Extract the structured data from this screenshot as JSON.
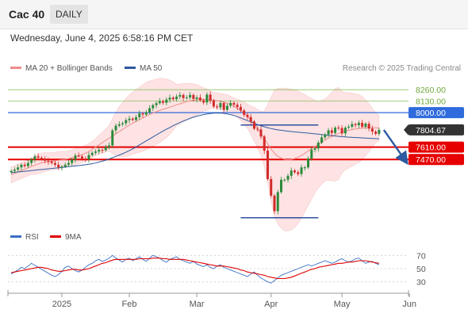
{
  "header": {
    "title": "Cac 40",
    "period": "DAILY"
  },
  "timestamp": "Wednesday, June 4, 2025 6:58:16 PM CET",
  "legend": {
    "ma20": {
      "label": "MA 20 + Bollinger Bands",
      "color": "#f08c8c"
    },
    "ma50": {
      "label": "MA 50",
      "color": "#2d5aa0"
    },
    "rsi": {
      "label": "RSI",
      "color": "#3a6fc4"
    },
    "rsi_ma": {
      "label": "9MA",
      "color": "#e00000"
    }
  },
  "credit": "Research © 2025 Trading Central",
  "chart_data": [
    {
      "type": "candlestick",
      "ylim": [
        6700,
        8450
      ],
      "x_tick_labels": [
        "2025",
        "Feb",
        "Mar",
        "Apr",
        "May",
        "Jun"
      ],
      "levels": [
        {
          "label": "8260.00",
          "value": 8260,
          "kind": "resistance",
          "color": "#8cc060"
        },
        {
          "label": "8130.00",
          "value": 8130,
          "kind": "resistance",
          "color": "#8cc060"
        },
        {
          "label": "8000.00",
          "value": 8000,
          "kind": "resistance",
          "color": "#2f6bdc"
        },
        {
          "label": "7804.67",
          "value": 7804.67,
          "kind": "last",
          "color": "#333333"
        },
        {
          "label": "7610.00",
          "value": 7610,
          "kind": "support",
          "color": "#e60000"
        },
        {
          "label": "7470.00",
          "value": 7470,
          "kind": "support",
          "color": "#e60000"
        }
      ],
      "closes": [
        7340,
        7355,
        7380,
        7410,
        7395,
        7430,
        7470,
        7505,
        7490,
        7480,
        7455,
        7445,
        7430,
        7410,
        7380,
        7390,
        7410,
        7430,
        7470,
        7515,
        7505,
        7480,
        7470,
        7520,
        7545,
        7560,
        7578,
        7575,
        7610,
        7628,
        7800,
        7852,
        7868,
        7880,
        7915,
        7932,
        7918,
        7948,
        7990,
        7978,
        8005,
        8050,
        8085,
        8107,
        8130,
        8112,
        8148,
        8170,
        8152,
        8182,
        8200,
        8165,
        8172,
        8200,
        8155,
        8172,
        8140,
        8115,
        8205,
        8137,
        8070,
        8060,
        8108,
        8032,
        8078,
        8110,
        8090,
        8065,
        8025,
        7975,
        7950,
        7900,
        7818,
        7810,
        7730,
        7570,
        7248,
        7060,
        6885,
        7100,
        7240,
        7240,
        7285,
        7345,
        7325,
        7305,
        7380,
        7380,
        7480,
        7580,
        7595,
        7660,
        7720,
        7752,
        7800,
        7770,
        7830,
        7825,
        7765,
        7830,
        7840,
        7870,
        7858,
        7885,
        7840,
        7875,
        7820,
        7785,
        7760,
        7804.67
      ],
      "ma20": [
        7295,
        7312,
        7328,
        7345,
        7360,
        7375,
        7390,
        7405,
        7420,
        7432,
        7440,
        7445,
        7450,
        7455,
        7460,
        7465,
        7470,
        7480,
        7490,
        7500,
        7512,
        7525,
        7540,
        7560,
        7585,
        7610,
        7635,
        7660,
        7685,
        7710,
        7735,
        7760,
        7785,
        7810,
        7835,
        7858,
        7880,
        7900,
        7920,
        7940,
        7960,
        7978,
        7995,
        8010,
        8025,
        8038,
        8050,
        8062,
        8075,
        8088,
        8100,
        8112,
        8124,
        8135,
        8140,
        8145,
        8148,
        8150,
        8148,
        8145,
        8140,
        8135,
        8128,
        8118,
        8105,
        8090,
        8070,
        8050,
        8025,
        7995,
        7960,
        7915,
        7870,
        7820,
        7765,
        7705,
        7645,
        7590,
        7540,
        7505,
        7485,
        7470,
        7465,
        7470,
        7480,
        7495,
        7515,
        7540,
        7565,
        7590,
        7615,
        7640,
        7665,
        7690,
        7712,
        7730,
        7748,
        7765,
        7778,
        7790,
        7800,
        7808,
        7815,
        7820,
        7825,
        7828,
        7830,
        7830,
        7828,
        7825
      ],
      "ma50": [
        7320,
        7324,
        7328,
        7332,
        7336,
        7340,
        7344,
        7348,
        7352,
        7356,
        7360,
        7364,
        7368,
        7372,
        7376,
        7380,
        7384,
        7388,
        7392,
        7396,
        7400,
        7405,
        7410,
        7415,
        7422,
        7430,
        7440,
        7450,
        7462,
        7475,
        7490,
        7505,
        7520,
        7535,
        7552,
        7570,
        7590,
        7612,
        7635,
        7658,
        7680,
        7702,
        7725,
        7748,
        7770,
        7792,
        7812,
        7832,
        7852,
        7870,
        7888,
        7905,
        7920,
        7935,
        7948,
        7960,
        7970,
        7978,
        7985,
        7990,
        7994,
        7996,
        7995,
        7992,
        7986,
        7978,
        7968,
        7955,
        7940,
        7925,
        7910,
        7895,
        7880,
        7865,
        7852,
        7840,
        7830,
        7820,
        7812,
        7805,
        7800,
        7795,
        7790,
        7786,
        7782,
        7778,
        7775,
        7772,
        7768,
        7764,
        7760,
        7756,
        7752,
        7748,
        7744,
        7740,
        7736,
        7732,
        7728,
        7725,
        7722,
        7720,
        7718,
        7716,
        7714,
        7712,
        7710,
        7708,
        7706,
        7704
      ]
    },
    {
      "type": "line",
      "ylim": [
        20,
        80
      ],
      "y_ticks": [
        30,
        50,
        70
      ],
      "series": [
        {
          "name": "RSI",
          "values": [
            42,
            45,
            48,
            52,
            50,
            54,
            58,
            55,
            52,
            49,
            46,
            43,
            40,
            38,
            41,
            46,
            52,
            54,
            50,
            47,
            45,
            48,
            52,
            56,
            58,
            62,
            64,
            61,
            63,
            66,
            70,
            66,
            63,
            60,
            64,
            66,
            62,
            65,
            68,
            64,
            61,
            66,
            70,
            68,
            66,
            62,
            60,
            64,
            66,
            68,
            64,
            62,
            60,
            58,
            61,
            57,
            55,
            53,
            56,
            52,
            50,
            54,
            56,
            52,
            50,
            48,
            46,
            44,
            42,
            40,
            38,
            42,
            45,
            40,
            36,
            33,
            30,
            28,
            32,
            36,
            40,
            42,
            44,
            46,
            48,
            50,
            52,
            54,
            56,
            54,
            56,
            58,
            60,
            62,
            60,
            58,
            60,
            63,
            65,
            62,
            60,
            62,
            65,
            66,
            62,
            58,
            60,
            61,
            58,
            56
          ]
        },
        {
          "name": "9MA",
          "values": [
            44,
            45,
            46,
            47,
            48,
            49,
            50,
            51,
            52,
            52,
            51,
            50,
            48,
            47,
            46,
            46,
            47,
            48,
            49,
            49,
            48,
            48,
            49,
            50,
            52,
            54,
            56,
            58,
            59,
            61,
            63,
            64,
            64,
            64,
            64,
            64,
            64,
            64,
            65,
            65,
            65,
            65,
            66,
            66,
            66,
            65,
            65,
            64,
            64,
            64,
            64,
            64,
            63,
            62,
            61,
            60,
            59,
            58,
            57,
            56,
            55,
            54,
            54,
            54,
            53,
            52,
            51,
            50,
            48,
            47,
            45,
            44,
            43,
            42,
            41,
            40,
            38,
            37,
            36,
            35,
            35,
            35,
            36,
            37,
            39,
            41,
            43,
            45,
            47,
            49,
            50,
            52,
            53,
            54,
            55,
            56,
            57,
            58,
            58,
            59,
            60,
            60,
            61,
            62,
            62,
            62,
            61,
            60,
            59,
            58
          ]
        }
      ]
    }
  ]
}
